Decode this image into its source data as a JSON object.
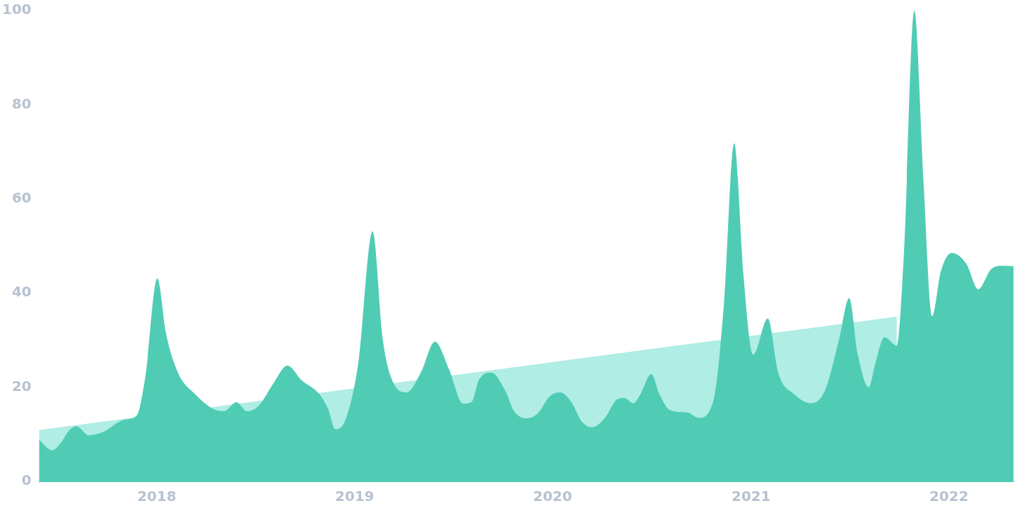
{
  "chart_data": {
    "type": "area",
    "xlim": [
      "2017-05-29",
      "2022-04-30"
    ],
    "ylim": [
      0,
      100
    ],
    "yticks": [
      0,
      20,
      40,
      60,
      80,
      100
    ],
    "xticks": [
      "2018",
      "2019",
      "2020",
      "2021",
      "2022"
    ],
    "series": [
      {
        "color": "#b0ede4",
        "x": [
          "2017-05-29",
          "2021-09-27"
        ],
        "values": [
          10.9,
          35.0
        ]
      },
      {
        "color": "#50ccb4",
        "x": [
          "2017-05-29",
          "2017-06-22",
          "2017-07-08",
          "2017-07-24",
          "2017-08-06",
          "2017-08-29",
          "2017-09-24",
          "2017-11-02",
          "2017-11-25",
          "2017-12-11",
          "2018-01-02",
          "2018-01-18",
          "2018-02-09",
          "2018-03-13",
          "2018-04-15",
          "2018-05-05",
          "2018-05-28",
          "2018-06-16",
          "2018-07-09",
          "2018-08-04",
          "2018-08-30",
          "2018-09-25",
          "2018-10-28",
          "2018-11-13",
          "2018-11-26",
          "2018-12-15",
          "2019-01-08",
          "2019-02-03",
          "2019-02-22",
          "2019-03-14",
          "2019-04-07",
          "2019-05-03",
          "2019-05-29",
          "2019-06-24",
          "2019-07-20",
          "2019-08-05",
          "2019-08-18",
          "2019-09-10",
          "2019-10-06",
          "2019-10-22",
          "2019-11-14",
          "2019-12-06",
          "2019-12-26",
          "2020-01-15",
          "2020-02-06",
          "2020-02-23",
          "2020-03-14",
          "2020-04-06",
          "2020-04-29",
          "2020-05-12",
          "2020-05-29",
          "2020-06-11",
          "2020-07-01",
          "2020-07-16",
          "2020-08-05",
          "2020-09-07",
          "2020-09-26",
          "2020-10-23",
          "2020-11-11",
          "2020-12-01",
          "2020-12-18",
          "2021-01-05",
          "2021-02-01",
          "2021-02-20",
          "2021-03-22",
          "2021-04-21",
          "2021-05-17",
          "2021-06-12",
          "2021-07-01",
          "2021-07-17",
          "2021-08-06",
          "2021-08-19",
          "2021-09-04",
          "2021-09-27",
          "2021-10-10",
          "2021-10-29",
          "2021-11-15",
          "2021-12-01",
          "2021-12-17",
          "2022-01-06",
          "2022-02-02",
          "2022-02-24",
          "2022-03-20",
          "2022-04-11",
          "2022-04-30"
        ],
        "values": [
          8.8,
          6.6,
          8.2,
          10.9,
          11.7,
          9.8,
          10.5,
          13.1,
          14,
          22.3,
          43.1,
          31.5,
          23.1,
          18.5,
          15.4,
          14.9,
          16.8,
          14.9,
          16.2,
          20.8,
          24.6,
          21.5,
          18.5,
          15.4,
          11.1,
          13.1,
          25.4,
          53.1,
          30,
          20.8,
          18.9,
          23.1,
          29.7,
          23.8,
          16.5,
          16.9,
          21.5,
          23.1,
          19.2,
          14.9,
          13.4,
          14.6,
          18,
          18.9,
          16.6,
          12.8,
          11.5,
          13.4,
          17.4,
          17.7,
          16.6,
          18.5,
          22.8,
          18.5,
          15.1,
          14.6,
          13.5,
          16.9,
          36.2,
          71.8,
          43.8,
          26.9,
          34.6,
          23.1,
          18.5,
          16.6,
          19.2,
          30,
          38.9,
          26.9,
          20,
          25.4,
          30.6,
          28.8,
          48.5,
          100,
          63.8,
          35.1,
          44.6,
          48.5,
          46.2,
          40.8,
          45.1,
          45.8,
          45.7
        ]
      }
    ]
  }
}
